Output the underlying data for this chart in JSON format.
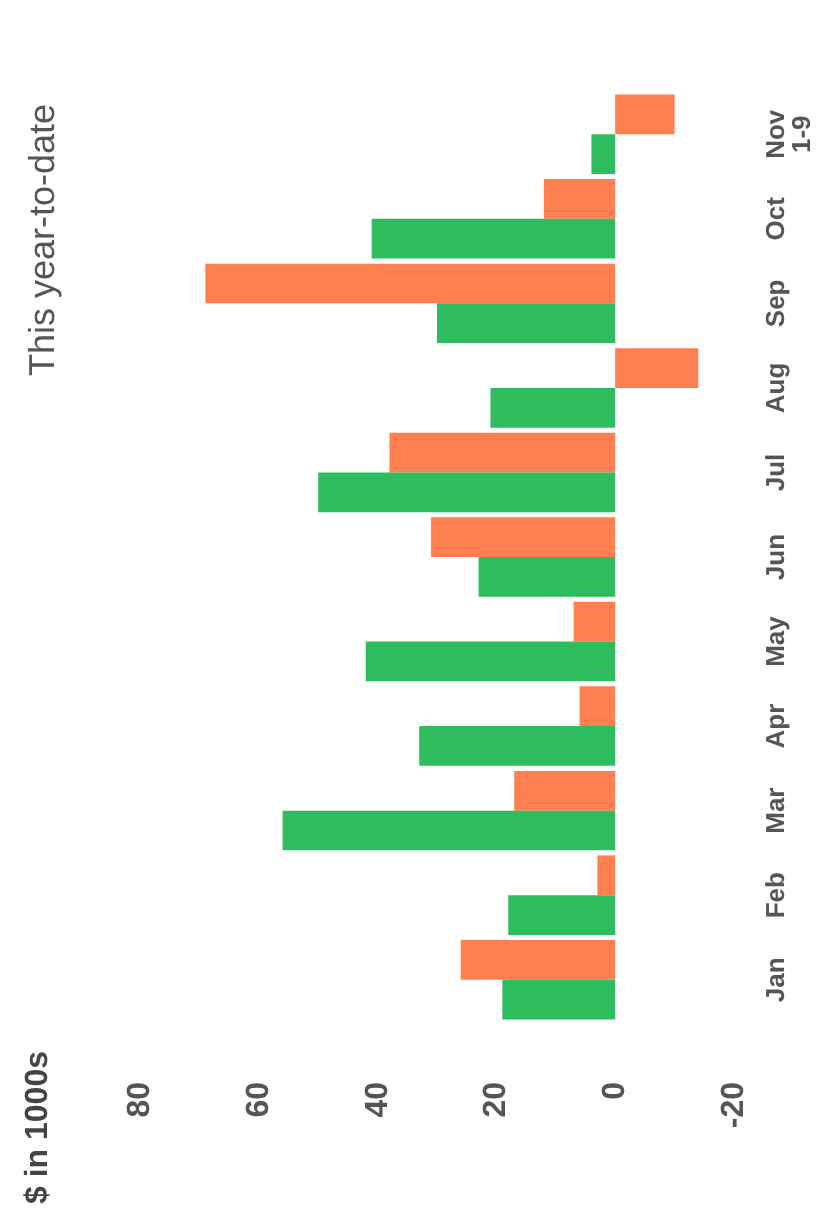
{
  "chart_data": {
    "type": "bar",
    "orientation": "horizontal",
    "title": "This year-to-date",
    "ylabel": "$ in 1000s",
    "categories": [
      "Nov\n1-9",
      "Oct",
      "Sep",
      "Aug",
      "Jul",
      "Jun",
      "May",
      "Apr",
      "Mar",
      "Feb",
      "Jan"
    ],
    "series": [
      {
        "color": "#ff7f50",
        "values": [
          -10,
          12,
          69,
          -14,
          38,
          31,
          7,
          6,
          17,
          3,
          26
        ]
      },
      {
        "color": "#2dbd5e",
        "values": [
          4,
          41,
          30,
          21,
          50,
          23,
          42,
          33,
          56,
          18,
          19
        ]
      }
    ],
    "xlim": [
      80,
      -20
    ],
    "xticks": [
      80,
      60,
      40,
      20,
      0,
      -20
    ],
    "grid": false
  }
}
